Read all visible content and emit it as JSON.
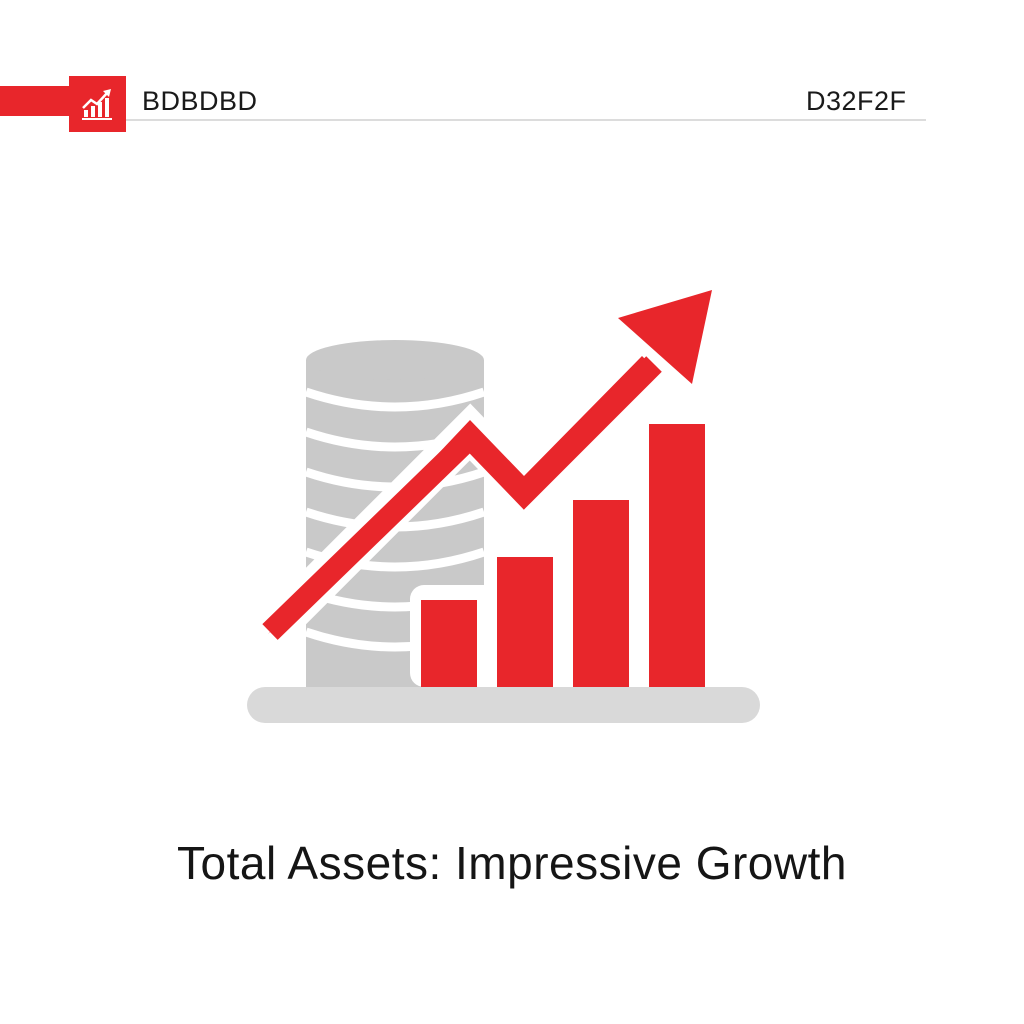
{
  "header": {
    "left_label": "BDBDBD",
    "right_label": "D32F2F",
    "logo_icon": "growth-chart-icon"
  },
  "illustration": {
    "icon": "coin-stack-growth-chart-icon",
    "colors": {
      "accent": "#e8262b",
      "neutral": "#c9c9c9",
      "neutral_light": "#d9d9d9"
    },
    "bars_relative_heights": [
      0.33,
      0.5,
      0.72,
      1.0
    ]
  },
  "caption": "Total Assets: Impressive Growth"
}
